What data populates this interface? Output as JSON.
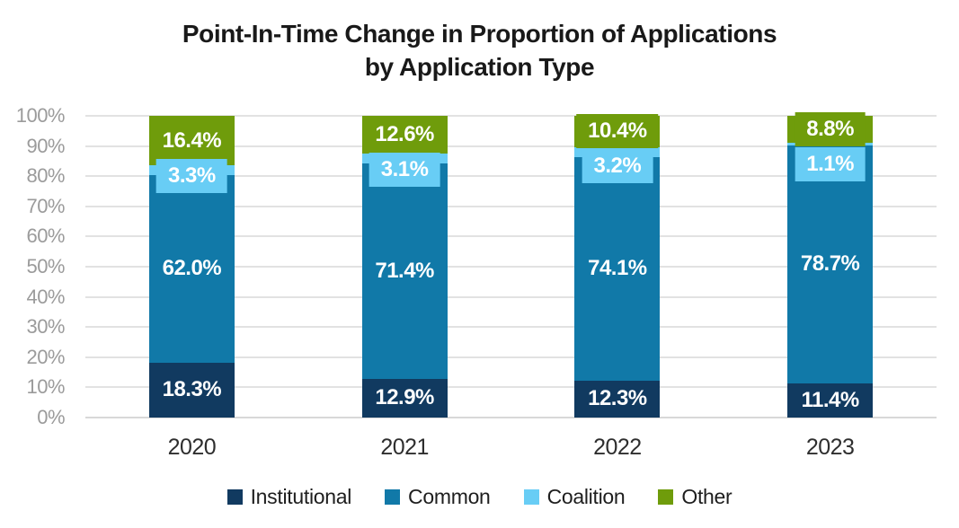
{
  "chart_data": {
    "type": "bar",
    "stacked": true,
    "title_lines": [
      "Point-In-Time Change in Proportion of Applications",
      "by Application Type"
    ],
    "categories": [
      "2020",
      "2021",
      "2022",
      "2023"
    ],
    "series": [
      {
        "name": "Institutional",
        "color": "#113A60",
        "values": [
          18.3,
          12.9,
          12.3,
          11.4
        ],
        "labels": [
          "18.3%",
          "12.9%",
          "12.3%",
          "11.4%"
        ]
      },
      {
        "name": "Common",
        "color": "#1179A8",
        "values": [
          62.0,
          71.4,
          74.1,
          78.7
        ],
        "labels": [
          "62.0%",
          "71.4%",
          "74.1%",
          "78.7%"
        ]
      },
      {
        "name": "Coalition",
        "color": "#68CDF5",
        "values": [
          3.3,
          3.1,
          3.2,
          1.1
        ],
        "labels": [
          "3.3%",
          "3.1%",
          "3.2%",
          "1.1%"
        ]
      },
      {
        "name": "Other",
        "color": "#6F9C0B",
        "values": [
          16.4,
          12.6,
          10.4,
          8.8
        ],
        "labels": [
          "16.4%",
          "12.6%",
          "10.4%",
          "8.8%"
        ]
      }
    ],
    "y_ticks": [
      "100%",
      "90%",
      "80%",
      "70%",
      "60%",
      "50%",
      "40%",
      "30%",
      "20%",
      "10%",
      "0%"
    ],
    "ylim": [
      0,
      100
    ],
    "grid": true,
    "legend_position": "bottom",
    "value_label_color": "#FFFFFF"
  }
}
